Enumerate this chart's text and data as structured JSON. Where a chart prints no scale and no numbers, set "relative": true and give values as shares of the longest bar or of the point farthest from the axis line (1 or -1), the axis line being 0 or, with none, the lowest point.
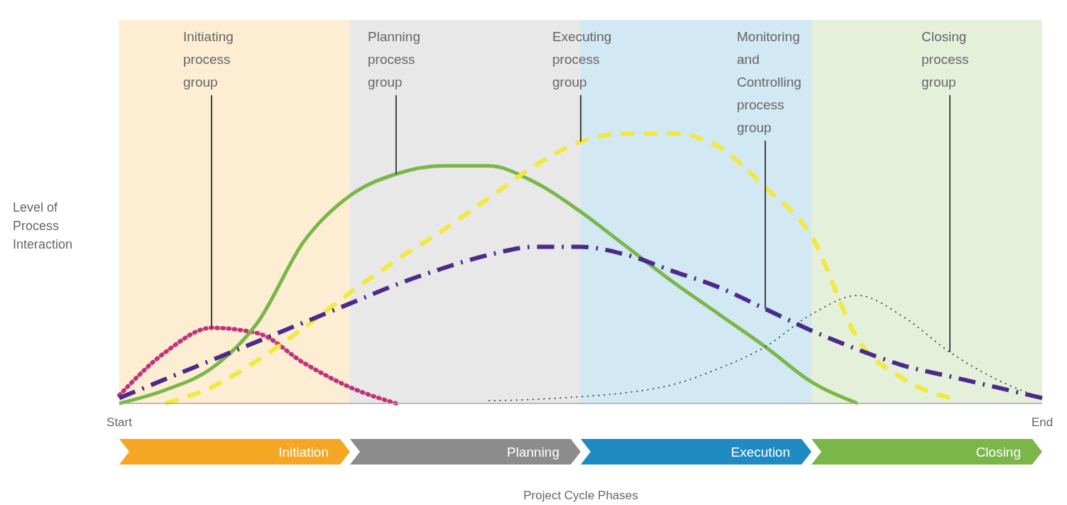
{
  "chart_data": {
    "type": "line",
    "relative": true,
    "xlabel": "Project Cycle Phases",
    "ylabel": "Level of Process Interaction",
    "categories": [
      "Start",
      null,
      null,
      null,
      null,
      null,
      null,
      null,
      null,
      null,
      null,
      null,
      null,
      null,
      null,
      null,
      null,
      null,
      null,
      null,
      "End"
    ],
    "series": [
      {
        "color": "#c0337a",
        "line_style": "dotted",
        "values": [
          0.03,
          0.19,
          0.28,
          0.26,
          0.15,
          0.06,
          0,
          null,
          null,
          null,
          null,
          null,
          null,
          null,
          null,
          null,
          null,
          null,
          null,
          null,
          null
        ]
      },
      {
        "color": "#7ab648",
        "line_style": "solid",
        "values": [
          0,
          0.05,
          0.13,
          0.3,
          0.6,
          0.77,
          0.85,
          0.88,
          0.88,
          0.82,
          0.71,
          0.58,
          0.45,
          0.33,
          0.21,
          0.08,
          0,
          null,
          null,
          null,
          null
        ]
      },
      {
        "color": "#f2e93a",
        "line_style": "dashed",
        "values": [
          null,
          0,
          0.06,
          0.16,
          0.28,
          0.41,
          0.53,
          0.64,
          0.76,
          0.88,
          0.97,
          1,
          1,
          0.95,
          0.8,
          0.62,
          0.24,
          0.09,
          0.02,
          null,
          null
        ]
      },
      {
        "color": "#4b2a8a",
        "line_style": "dashdot",
        "values": [
          0.02,
          0.09,
          0.16,
          0.23,
          0.3,
          0.37,
          0.44,
          0.5,
          0.55,
          0.58,
          0.58,
          0.55,
          0.49,
          0.43,
          0.35,
          0.27,
          0.2,
          0.14,
          0.1,
          0.06,
          0.02
        ]
      },
      {
        "color": "#333333",
        "line_style": "dotted",
        "values": [
          null,
          null,
          null,
          null,
          null,
          null,
          null,
          null,
          0.01,
          0.015,
          0.025,
          0.04,
          0.07,
          0.13,
          0.21,
          0.33,
          0.4,
          0.32,
          0.19,
          0.09,
          0.02
        ]
      }
    ],
    "annotations": [
      "Initiating process group",
      "Planning process group",
      "Executing process group",
      "Monitoring and Controlling process group",
      "Closing process group",
      "Initiation",
      "Planning",
      "Execution",
      "Closing"
    ]
  }
}
